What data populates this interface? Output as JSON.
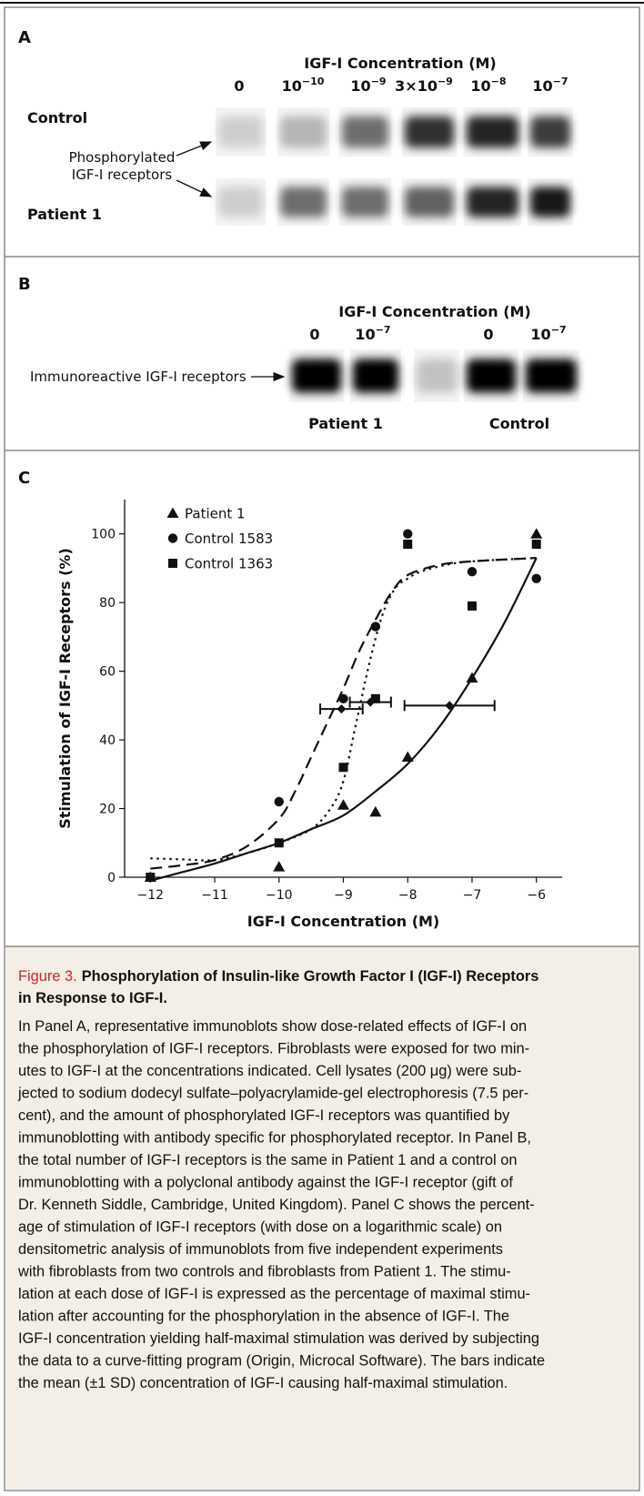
{
  "panel_a": {
    "letter": "A",
    "axis_title": "IGF-I Concentration (M)",
    "concentrations": [
      [
        "0"
      ],
      [
        "10",
        "−10"
      ],
      [
        "10",
        "−9"
      ],
      [
        "3×10",
        "−9"
      ],
      [
        "10",
        "−8"
      ],
      [
        "10",
        "−7"
      ]
    ],
    "rows": [
      "Control",
      "Patient 1"
    ],
    "annotation": [
      "Phosphorylated",
      "IGF-I receptors"
    ]
  },
  "panel_b": {
    "letter": "B",
    "axis_title": "IGF-I Concentration (M)",
    "concentrations": [
      [
        "0"
      ],
      [
        "10",
        "−7"
      ],
      [
        "0"
      ],
      [
        "10",
        "−7"
      ]
    ],
    "annotation": "Immunoreactive IGF-I receptors",
    "groups": [
      "Patient 1",
      "Control"
    ]
  },
  "chart_data": {
    "type": "scatter",
    "panel_letter": "C",
    "x_label": "IGF-I Concentration (M)",
    "y_label": "Stimulation of IGF-I Receptors (%)",
    "xlim": [
      -12.4,
      -5.6
    ],
    "ylim": [
      0,
      110
    ],
    "xticks": [
      {
        "value": -12,
        "label": "−12"
      },
      {
        "value": -11,
        "label": "−11"
      },
      {
        "value": -10,
        "label": "−10"
      },
      {
        "value": -9,
        "label": "−9"
      },
      {
        "value": -8,
        "label": "−8"
      },
      {
        "value": -7,
        "label": "−7"
      },
      {
        "value": -6,
        "label": "−6"
      }
    ],
    "yticks": [
      0,
      20,
      40,
      60,
      80,
      100
    ],
    "legend": "upper-left",
    "series": [
      {
        "name": "Patient 1",
        "marker": "triangle",
        "color": "#111111",
        "dash": "solid",
        "x": [
          -12,
          -10,
          -9,
          -8.5,
          -8,
          -7,
          -6
        ],
        "y": [
          0,
          3,
          21,
          19,
          35,
          58,
          100
        ],
        "fit": {
          "x": [
            -12,
            -11.5,
            -11,
            -10.5,
            -10,
            -9.5,
            -9,
            -8.5,
            -8,
            -7.5,
            -7,
            -6.5,
            -6
          ],
          "y": [
            -1,
            1.5,
            4,
            7,
            10,
            14,
            18,
            25,
            33,
            44,
            58,
            74,
            93
          ]
        },
        "half_max": {
          "x": -7.35,
          "y": 50,
          "xerr": 0.7
        }
      },
      {
        "name": "Control 1583",
        "marker": "circle",
        "color": "#111111",
        "dash": "dashed",
        "x": [
          -12,
          -10,
          -9,
          -8.5,
          -8,
          -7,
          -6
        ],
        "y": [
          0,
          22,
          52,
          73,
          100,
          89,
          87
        ],
        "fit": {
          "x": [
            -12,
            -11.5,
            -11,
            -10.5,
            -10,
            -9.75,
            -9.5,
            -9.25,
            -9,
            -8.75,
            -8.5,
            -8.25,
            -8,
            -7.5,
            -7,
            -6
          ],
          "y": [
            2.5,
            3.5,
            5,
            9,
            17,
            25,
            35,
            45,
            55,
            66,
            75,
            83,
            88,
            91,
            92,
            93
          ]
        },
        "half_max": {
          "x": -9.03,
          "y": 49,
          "xerr": 0.33
        }
      },
      {
        "name": "Control 1363",
        "marker": "square",
        "color": "#111111",
        "dash": "dotted",
        "x": [
          -12,
          -10,
          -9,
          -8.5,
          -8,
          -7,
          -6
        ],
        "y": [
          0,
          10,
          32,
          52,
          97,
          79,
          97
        ],
        "fit": {
          "x": [
            -12,
            -11.5,
            -11,
            -10.5,
            -10,
            -9.5,
            -9.2,
            -9,
            -8.8,
            -8.6,
            -8.4,
            -8.2,
            -8,
            -7.8,
            -7.4,
            -7,
            -6
          ],
          "y": [
            5.5,
            5.2,
            5,
            7,
            10,
            14,
            20,
            28,
            45,
            62,
            76,
            84,
            87,
            89,
            91,
            92,
            93
          ]
        },
        "half_max": {
          "x": -8.58,
          "y": 51,
          "xerr": 0.32
        }
      }
    ]
  },
  "caption": {
    "label": "Figure 3.",
    "title_lines": [
      "Phosphorylation of Insulin-like Growth Factor I (IGF-I) Receptors",
      "in Response to IGF-I."
    ],
    "body_lines": [
      "In Panel A, representative immunoblots show dose-related effects of IGF-I on",
      "the phosphorylation of IGF-I receptors. Fibroblasts were exposed for two min-",
      "utes to IGF-I at the concentrations indicated. Cell lysates (200 μg) were sub-",
      "jected to sodium dodecyl sulfate–polyacrylamide-gel electrophoresis (7.5 per-",
      "cent), and the amount of phosphorylated IGF-I receptors was quantified by",
      "immunoblotting with antibody specific for phosphorylated receptor. In Panel B,",
      "the total number of IGF-I receptors is the same in Patient 1 and a control on",
      "immunoblotting with a polyclonal antibody against the IGF-I receptor (gift of",
      "Dr. Kenneth Siddle, Cambridge, United Kingdom). Panel C shows the percent-",
      "age of stimulation of IGF-I receptors (with dose on a logarithmic scale) on",
      "densitometric analysis of immunoblots from five independent experiments",
      "with fibroblasts from two controls and fibroblasts from Patient 1. The stimu-",
      "lation at each dose of IGF-I is expressed as the percentage of maximal stimu-",
      "lation after accounting for the phosphorylation in the absence of IGF-I. The",
      "IGF-I concentration yielding half-maximal stimulation was derived by subjecting",
      "the data to a curve-fitting program (Origin, Microcal Software). The bars indicate",
      "the mean (±1 SD) concentration of IGF-I causing half-maximal stimulation."
    ]
  }
}
